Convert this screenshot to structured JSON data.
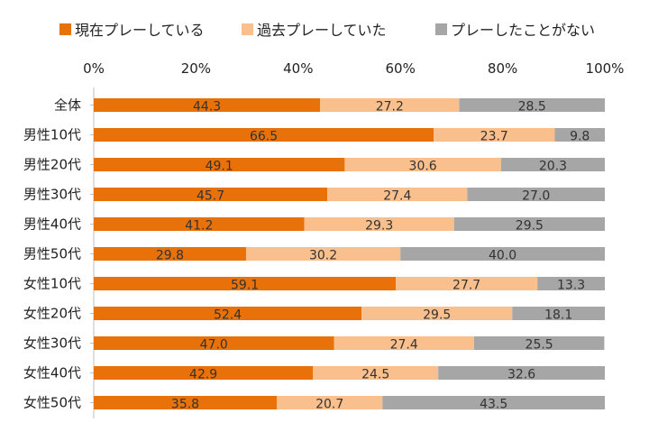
{
  "chart_data": {
    "type": "bar",
    "orientation": "horizontal",
    "stacked": true,
    "categories": [
      "全体",
      "男性10代",
      "男性20代",
      "男性30代",
      "男性40代",
      "男性50代",
      "女性10代",
      "女性20代",
      "女性30代",
      "女性40代",
      "女性50代"
    ],
    "series": [
      {
        "name": "現在プレーしている",
        "color": "#e8710a",
        "values": [
          44.3,
          66.5,
          49.1,
          45.7,
          41.2,
          29.8,
          59.1,
          52.4,
          47.0,
          42.9,
          35.8
        ],
        "labels": [
          "44.3",
          "66.5",
          "49.1",
          "45.7",
          "41.2",
          "29.8",
          "59.1",
          "52.4",
          "47.0",
          "42.9",
          "35.8"
        ]
      },
      {
        "name": "過去プレーしていた",
        "color": "#f9bf8c",
        "values": [
          27.2,
          23.7,
          30.6,
          27.4,
          29.3,
          30.2,
          27.7,
          29.5,
          27.4,
          24.5,
          20.7
        ],
        "labels": [
          "27.2",
          "23.7",
          "30.6",
          "27.4",
          "29.3",
          "30.2",
          "27.7",
          "29.5",
          "27.4",
          "24.5",
          "20.7"
        ]
      },
      {
        "name": "プレーしたことがない",
        "color": "#a6a6a6",
        "values": [
          28.5,
          9.8,
          20.3,
          27.0,
          29.5,
          40.0,
          13.3,
          18.1,
          25.5,
          32.6,
          43.5
        ],
        "labels": [
          "28.5",
          "9.8",
          "20.3",
          "27.0",
          "29.5",
          "40.0",
          "13.3",
          "18.1",
          "25.5",
          "32.6",
          "43.5"
        ]
      }
    ],
    "xlim": [
      0,
      100
    ],
    "ticks": [
      "0%",
      "20%",
      "40%",
      "60%",
      "80%",
      "100%"
    ],
    "grid": false,
    "legend_position": "top"
  }
}
